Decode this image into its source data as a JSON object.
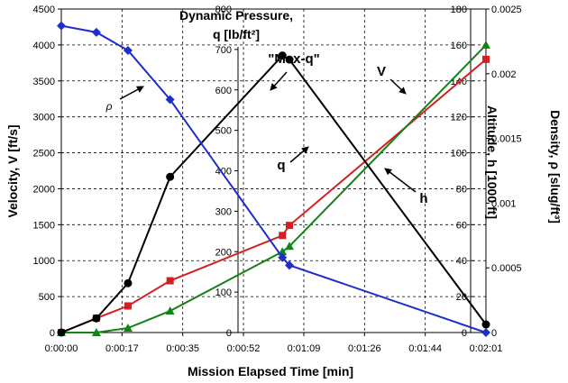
{
  "chart_data": {
    "type": "line",
    "xlabel": "Mission Elapsed Time [min]",
    "x_ticks": [
      "0:00:00",
      "0:00:17",
      "0:00:35",
      "0:00:52",
      "0:01:09",
      "0:01:26",
      "0:01:44",
      "0:02:01"
    ],
    "x_tick_seconds": [
      0,
      17.3,
      34.6,
      51.9,
      69.1,
      86.4,
      103.7,
      121
    ],
    "xlim": [
      0,
      121
    ],
    "grid": true,
    "axes": {
      "velocity": {
        "label": "Velocity, V [ft/s]",
        "ticks": [
          "0",
          "500",
          "1000",
          "1500",
          "2000",
          "2500",
          "3000",
          "3500",
          "4000",
          "4500"
        ],
        "lim": [
          0,
          4500
        ],
        "position": "left"
      },
      "pressure": {
        "label_line1": "Dynamic Pressure,",
        "label_line2": "q [lb/ft²]",
        "ticks": [
          "0",
          "100",
          "200",
          "300",
          "400",
          "500",
          "600",
          "700",
          "800"
        ],
        "lim": [
          0,
          800
        ],
        "position": "inner-left"
      },
      "altitude": {
        "label": "Altitude, h [1000 ft]",
        "ticks": [
          "0",
          "20",
          "40",
          "60",
          "80",
          "100",
          "120",
          "140",
          "160",
          "180"
        ],
        "lim": [
          0,
          180
        ],
        "position": "inner-right"
      },
      "density": {
        "label": "Density, ρ [slug/ft³]",
        "ticks": [
          "0",
          "0.0005",
          "0.001",
          "0.0015",
          "0.002",
          "0.0025"
        ],
        "lim": [
          0,
          0.0025
        ],
        "position": "right"
      }
    },
    "series": [
      {
        "key": "V",
        "axis": "velocity",
        "color": "#d42020",
        "marker": "square",
        "x": [
          0,
          10,
          19,
          31,
          63,
          65,
          121
        ],
        "y": [
          0,
          200,
          370,
          720,
          1350,
          1490,
          3800
        ]
      },
      {
        "key": "h",
        "axis": "altitude",
        "color": "#148214",
        "marker": "triangle",
        "x": [
          0,
          10,
          19,
          31,
          63,
          65,
          121
        ],
        "y": [
          0,
          0,
          2.5,
          12,
          45,
          48,
          160
        ]
      },
      {
        "key": "q",
        "axis": "pressure",
        "color": "#000000",
        "marker": "circle",
        "x": [
          0,
          10,
          19,
          31,
          63,
          65,
          121
        ],
        "y": [
          0,
          35,
          122,
          385,
          685,
          675,
          20
        ]
      },
      {
        "key": "rho",
        "axis": "density",
        "color": "#1e2ec8",
        "marker": "diamond",
        "x": [
          0,
          10,
          19,
          31,
          63,
          65,
          121
        ],
        "y": [
          0.00237,
          0.00232,
          0.00218,
          0.0018,
          0.00058,
          0.00052,
          0.0
        ]
      }
    ],
    "annotations": {
      "max_q": "\"Max-q\"",
      "V": "V",
      "q": "q",
      "h": "h",
      "rho": "ρ"
    }
  }
}
